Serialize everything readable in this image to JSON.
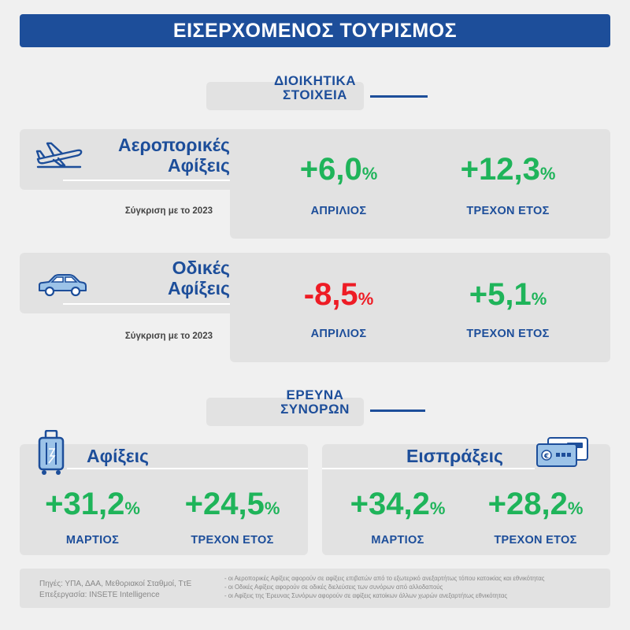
{
  "header": {
    "title": "ΕΙΣΕΡΧΟΜΕΝΟΣ ΤΟΥΡΙΣΜΟΣ"
  },
  "admin_section": {
    "line1": "ΔΙΟΙΚΗΤΙΚΑ",
    "line2": "ΣΤΟΙΧΕΙΑ"
  },
  "air": {
    "title_line1": "Αεροπορικές",
    "title_line2": "Αφίξεις",
    "comparison": "Σύγκριση με το 2023",
    "month_value": "+6,0",
    "month_label": "ΑΠΡΙΛΙΟΣ",
    "ytd_value": "+12,3",
    "ytd_label": "ΤΡΕΧΟΝ ΕΤΟΣ",
    "pct": "%"
  },
  "road": {
    "title_line1": "Οδικές",
    "title_line2": "Αφίξεις",
    "comparison": "Σύγκριση με το 2023",
    "month_value": "-8,5",
    "month_label": "ΑΠΡΙΛΙΟΣ",
    "ytd_value": "+5,1",
    "ytd_label": "ΤΡΕΧΟΝ ΕΤΟΣ",
    "pct": "%"
  },
  "survey_section": {
    "line1": "ΕΡΕΥΝΑ",
    "line2": "ΣΥΝΟΡΩΝ"
  },
  "survey_arrivals": {
    "title": "Αφίξεις",
    "month_value": "+31,2",
    "month_label": "ΜΑΡΤΙΟΣ",
    "ytd_value": "+24,5",
    "ytd_label": "ΤΡΕΧΟΝ ΕΤΟΣ",
    "pct": "%"
  },
  "survey_receipts": {
    "title": "Εισπράξεις",
    "month_value": "+34,2",
    "month_label": "ΜΑΡΤΙΟΣ",
    "ytd_value": "+28,2",
    "ytd_label": "ΤΡΕΧΟΝ ΕΤΟΣ",
    "pct": "%"
  },
  "footer": {
    "sources": "Πηγές:  ΥΠΑ, ΔΑΑ, Μεθοριακοί Σταθμοί, ΤτΕ",
    "processing": "Επεξεργασία:  INSETE Intelligence",
    "notes": [
      "- οι Αεροπορικές Αφίξεις αφορούν σε αφίξεις επιβατών από το εξωτερικό ανεξαρτήτως τόπου κατοικίας και εθνικότητας",
      "- οι Οδικές Αφίξεις αφορούν σε οδικές διελεύσεις των συνόρων από αλλοδαπούς",
      "- οι Αφίξεις της Έρευνας Συνόρων αφορούν σε αφίξεις κατοίκων άλλων χωρών ανεξαρτήτως εθνικότητας"
    ]
  },
  "colors": {
    "navy": "#1d4e9a",
    "green": "#1fb45a",
    "red": "#ee1c25",
    "panel": "#e2e2e2"
  },
  "icons": [
    "airplane-icon",
    "car-icon",
    "luggage-icon",
    "card-icon"
  ]
}
